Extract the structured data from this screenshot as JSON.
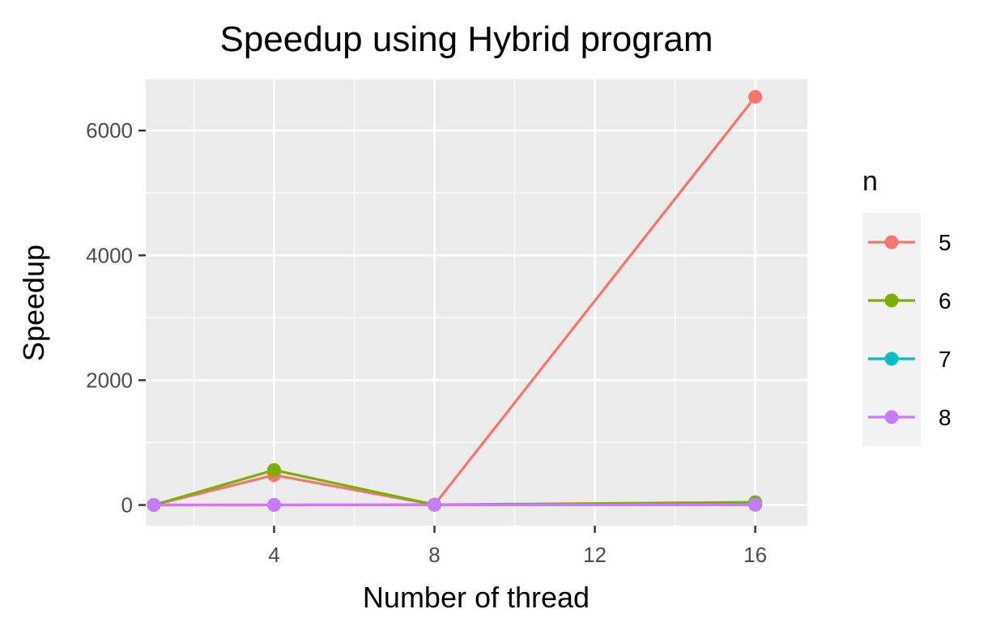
{
  "chart_data": {
    "type": "line",
    "title": "Speedup using Hybrid program",
    "xlabel": "Number of thread",
    "ylabel": "Speedup",
    "x": [
      1,
      4,
      8,
      16
    ],
    "xlim": [
      0.8,
      17.3
    ],
    "ylim": [
      -330,
      6820
    ],
    "x_ticks": [
      4,
      8,
      12,
      16
    ],
    "y_ticks": [
      0,
      2000,
      4000,
      6000
    ],
    "grid": true,
    "legend": {
      "title": "n",
      "position": "right"
    },
    "series": [
      {
        "name": "5",
        "color": "#F8766D",
        "values": [
          1,
          480,
          5,
          6540
        ]
      },
      {
        "name": "6",
        "color": "#7CAE00",
        "values": [
          1,
          560,
          5,
          45
        ]
      },
      {
        "name": "7",
        "color": "#00BFC4",
        "values": [
          1,
          2,
          4,
          5
        ]
      },
      {
        "name": "8",
        "color": "#C77CFF",
        "values": [
          1,
          1,
          3,
          4
        ]
      }
    ]
  }
}
